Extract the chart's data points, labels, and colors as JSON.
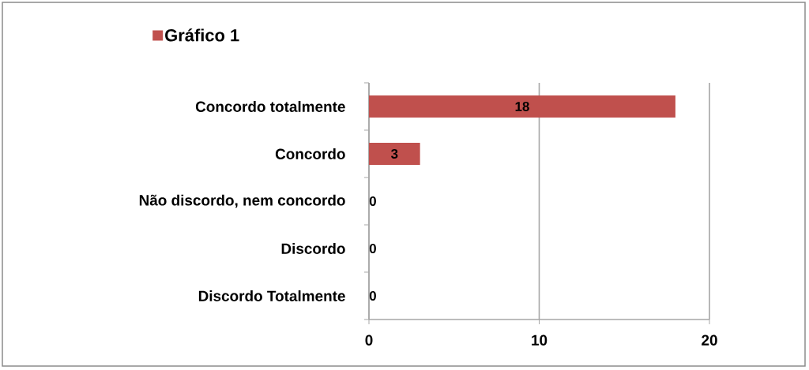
{
  "chart_data": {
    "type": "bar",
    "orientation": "horizontal",
    "categories": [
      "Concordo totalmente",
      "Concordo",
      "Não discordo, nem concordo",
      "Discordo",
      "Discordo Totalmente"
    ],
    "series": [
      {
        "name": "Gráfico 1",
        "color": "#c0504d",
        "values": [
          18,
          3,
          0,
          0,
          0
        ]
      }
    ],
    "xlim": [
      0,
      20
    ],
    "xticks": [
      0,
      10,
      20
    ],
    "grid": "x",
    "legend": "top left",
    "data_labels": true
  }
}
